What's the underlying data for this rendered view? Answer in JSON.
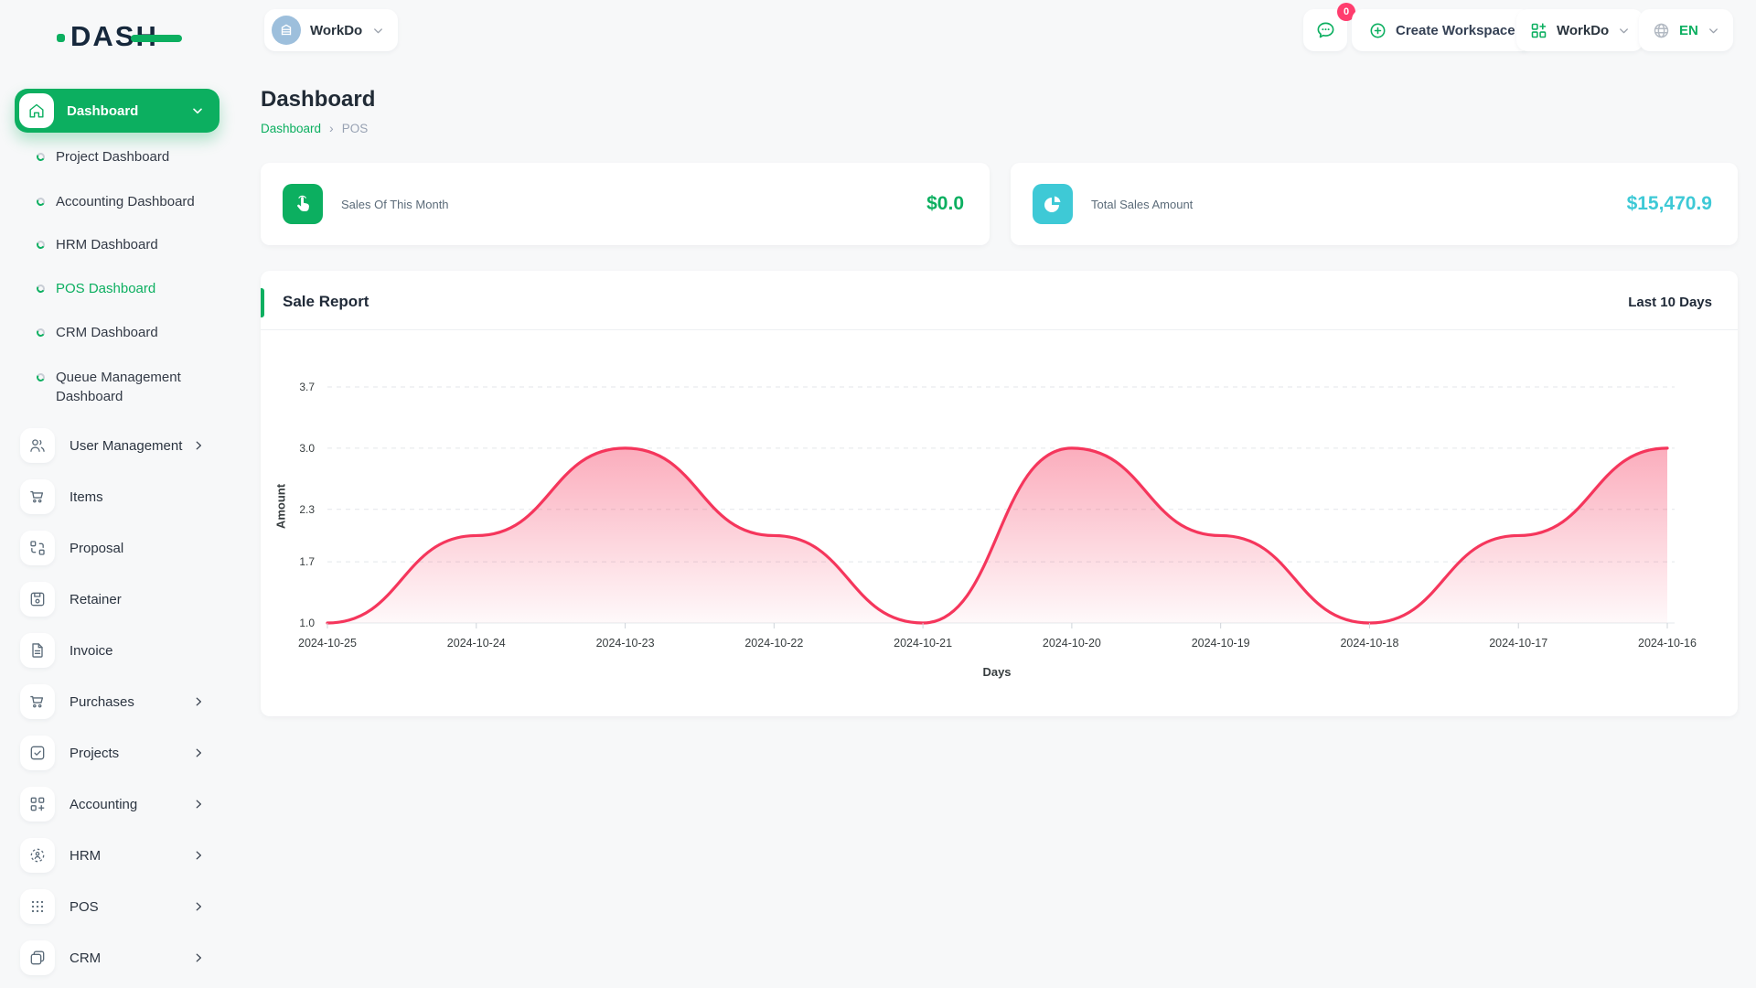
{
  "brand": {
    "logo_text": "DASH"
  },
  "header": {
    "workspace_switcher": {
      "label": "WorkDo",
      "avatar_icon": "building-icon"
    },
    "messages": {
      "icon": "chat-bubble-icon",
      "badge": "0"
    },
    "create_workspace": {
      "label": "Create Workspace",
      "icon": "plus-circle-icon"
    },
    "workspace_menu": {
      "label": "WorkDo",
      "icon": "grid-plus-icon"
    },
    "language": {
      "label": "EN",
      "icon": "globe-icon"
    }
  },
  "sidebar": {
    "group": {
      "label": "Dashboard",
      "icon": "home-icon"
    },
    "dashboard_children": [
      {
        "label": "Project Dashboard"
      },
      {
        "label": "Accounting Dashboard"
      },
      {
        "label": "HRM Dashboard"
      },
      {
        "label": "POS Dashboard"
      },
      {
        "label": "CRM Dashboard"
      },
      {
        "label": "Queue Management Dashboard"
      }
    ],
    "items": [
      {
        "label": "User Management",
        "icon": "users-icon",
        "has_children": true
      },
      {
        "label": "Items",
        "icon": "cart-icon",
        "has_children": false
      },
      {
        "label": "Proposal",
        "icon": "swap-squares-icon",
        "has_children": false
      },
      {
        "label": "Retainer",
        "icon": "floppy-icon",
        "has_children": false
      },
      {
        "label": "Invoice",
        "icon": "document-icon",
        "has_children": false
      },
      {
        "label": "Purchases",
        "icon": "cart-icon",
        "has_children": true
      },
      {
        "label": "Projects",
        "icon": "check-square-icon",
        "has_children": true
      },
      {
        "label": "Accounting",
        "icon": "grid-plus-icon",
        "has_children": true
      },
      {
        "label": "HRM",
        "icon": "person-dashed-circle-icon",
        "has_children": true
      },
      {
        "label": "POS",
        "icon": "dots-grid-icon",
        "has_children": true
      },
      {
        "label": "CRM",
        "icon": "overlap-squares-icon",
        "has_children": true
      }
    ]
  },
  "page": {
    "title": "Dashboard",
    "breadcrumb": {
      "root": "Dashboard",
      "current": "POS"
    }
  },
  "stats": [
    {
      "label": "Sales Of This Month",
      "value": "$0.0",
      "accent": "#0caf60",
      "icon": "hand-tap-icon"
    },
    {
      "label": "Total Sales Amount",
      "value": "$15,470.9",
      "accent": "#3ec9d6",
      "icon": "pie-chart-icon"
    }
  ],
  "chart_card": {
    "title": "Sale Report",
    "range_label": "Last 10 Days"
  },
  "chart_data": {
    "type": "area",
    "title": "Sale Report",
    "x": [
      "2024-10-25",
      "2024-10-24",
      "2024-10-23",
      "2024-10-22",
      "2024-10-21",
      "2024-10-20",
      "2024-10-19",
      "2024-10-18",
      "2024-10-17",
      "2024-10-16"
    ],
    "values": [
      1.0,
      2.0,
      3.0,
      2.0,
      1.0,
      3.0,
      2.0,
      1.0,
      2.0,
      3.0
    ],
    "xlabel": "Days",
    "ylabel": "Amount",
    "y_ticks": [
      3.7,
      3.0,
      2.3,
      1.7,
      1.0
    ],
    "ylim": [
      1.0,
      3.7
    ],
    "line_color": "#f5365c",
    "grid": true,
    "legend": false
  },
  "colors": {
    "primary": "#0caf60",
    "secondary": "#3ec9d6",
    "chart_line": "#f5365c",
    "badge": "#ff3d6e",
    "page_bg": "#f7f8f9"
  }
}
